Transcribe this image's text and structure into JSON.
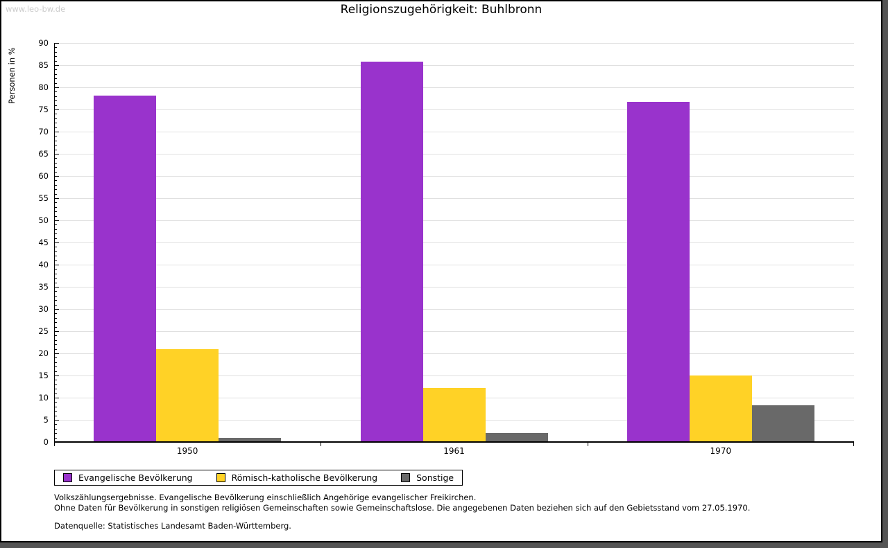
{
  "watermark": "www.leo-bw.de",
  "chart_data": {
    "type": "bar",
    "title": "Religionszugehörigkeit: Buhlbronn",
    "xlabel": "",
    "ylabel": "Personen in %",
    "ylim": [
      0,
      90
    ],
    "ytick_step": 5,
    "minor_tick_step": 1,
    "grid": true,
    "grid_color": "#e0e0e0",
    "axis_color": "#000000",
    "legend_position": "bottom",
    "categories": [
      "1950",
      "1961",
      "1970"
    ],
    "series": [
      {
        "name": "Evangelische Bevölkerung",
        "color": "#9933cc",
        "values": [
          78.2,
          85.8,
          76.7
        ]
      },
      {
        "name": "Römisch-katholische Bevölkerung",
        "color": "#ffd226",
        "values": [
          20.9,
          12.2,
          15.0
        ]
      },
      {
        "name": "Sonstige",
        "color": "#696969",
        "values": [
          0.9,
          2.0,
          8.3
        ]
      }
    ]
  },
  "footnotes": [
    "Volkszählungsergebnisse. Evangelische Bevölkerung einschließlich Angehörige evangelischer Freikirchen.",
    "Ohne Daten für Bevölkerung in sonstigen religiösen Gemeinschaften sowie Gemeinschaftslose. Die angegebenen Daten beziehen sich auf den Gebietsstand vom 27.05.1970."
  ],
  "source": "Datenquelle: Statistisches Landesamt Baden-Württemberg."
}
